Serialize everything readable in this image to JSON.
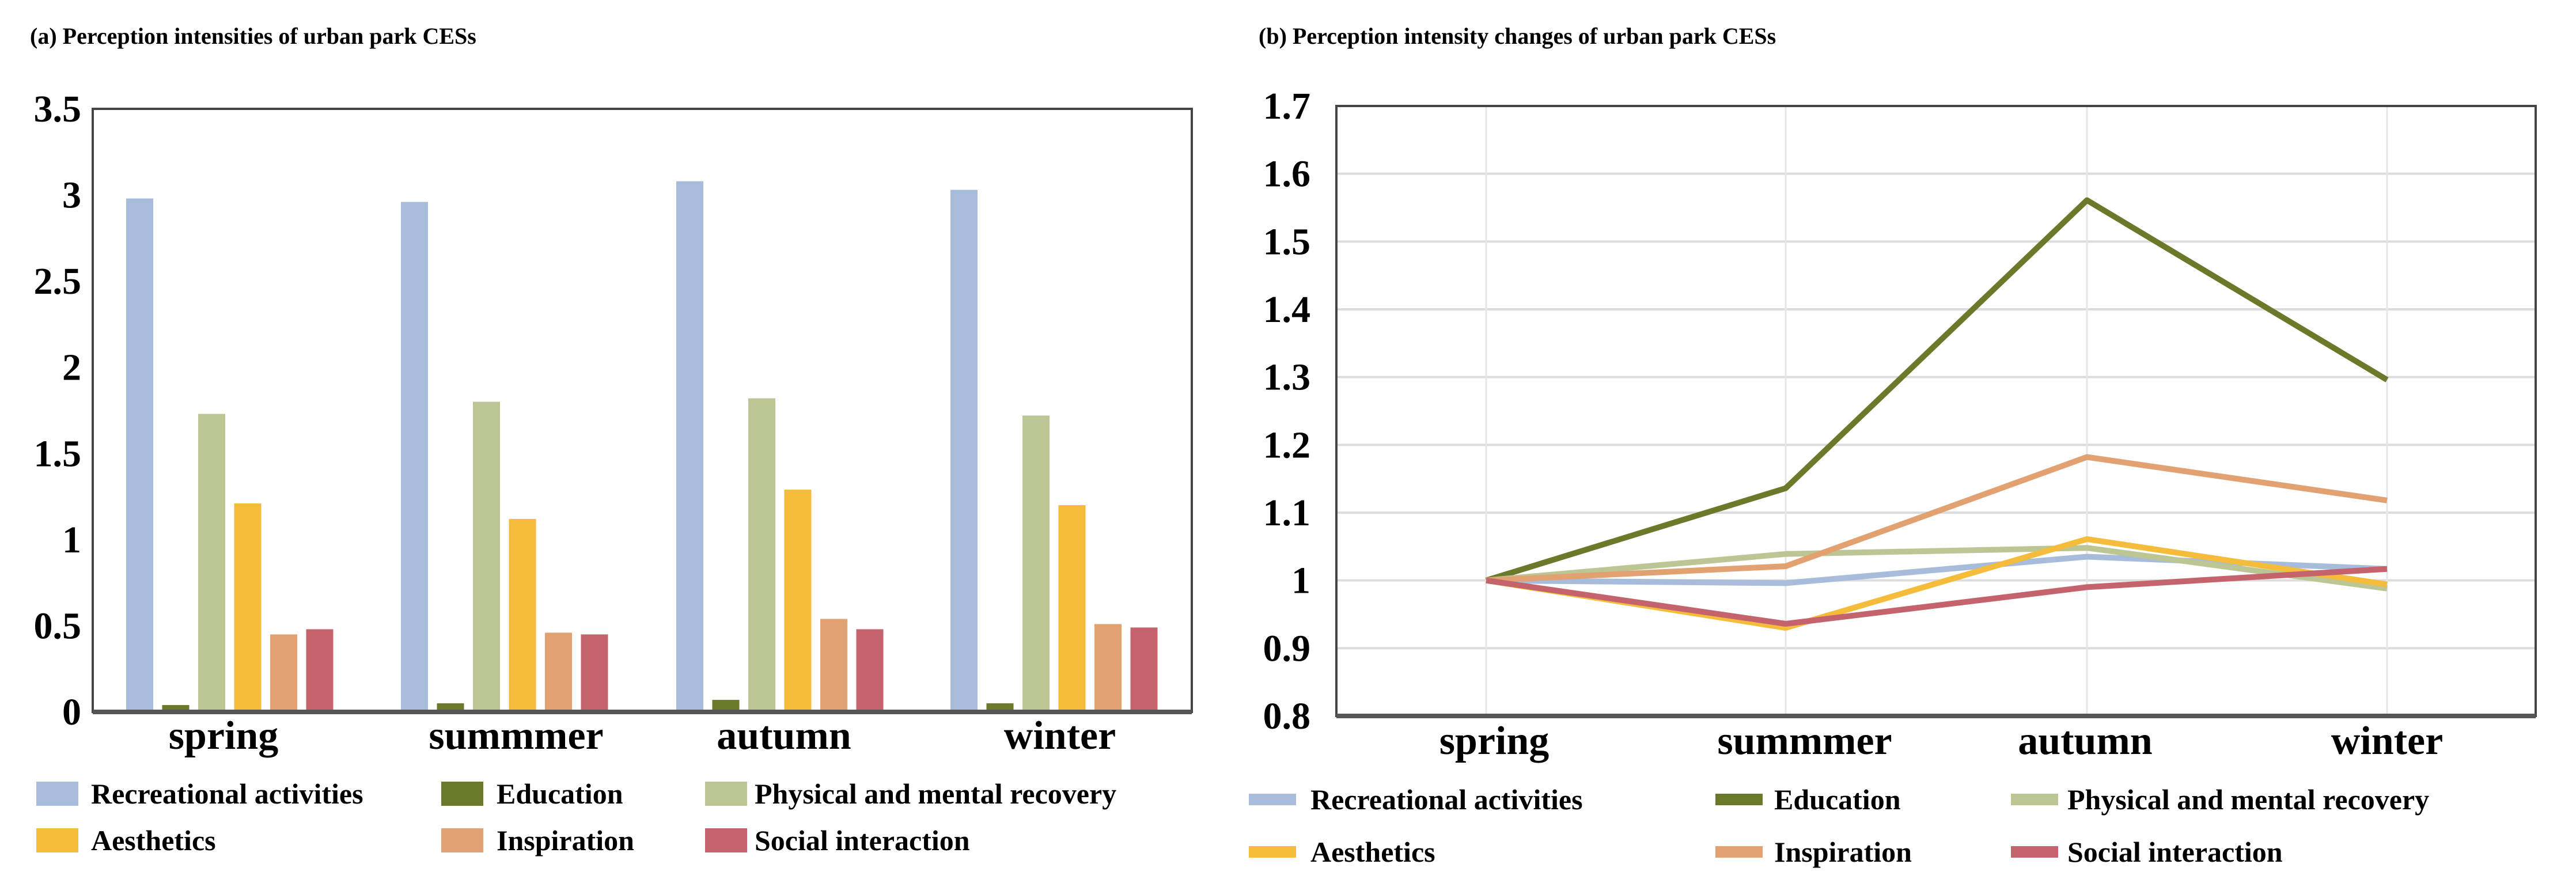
{
  "colors": {
    "Recreational activities": "#a7bbdb",
    "Education": "#6b7a2a",
    "Physical and mental recovery": "#bcc694",
    "Aesthetics": "#f5bb3b",
    "Inspiration": "#e2a171",
    "Social interaction": "#c4636b"
  },
  "chart_data": [
    {
      "type": "bar",
      "title": "(a)  Perception intensities of urban park CESs",
      "categories": [
        "spring",
        "summmer",
        "autumn",
        "winter"
      ],
      "ylim": [
        0,
        3.5
      ],
      "yticks": [
        "0",
        "0.5",
        "1",
        "1.5",
        "2",
        "2.5",
        "3",
        "3.5"
      ],
      "grid": false,
      "legend_position": "bottom",
      "series": [
        {
          "name": "Recreational activities",
          "values": [
            2.98,
            2.96,
            3.08,
            3.03
          ]
        },
        {
          "name": "Education",
          "values": [
            0.04,
            0.05,
            0.07,
            0.05
          ]
        },
        {
          "name": "Physical and mental recovery",
          "values": [
            1.73,
            1.8,
            1.82,
            1.72
          ]
        },
        {
          "name": "Aesthetics",
          "values": [
            1.21,
            1.12,
            1.29,
            1.2
          ]
        },
        {
          "name": "Inspiration",
          "values": [
            0.45,
            0.46,
            0.54,
            0.51
          ]
        },
        {
          "name": "Social interaction",
          "values": [
            0.48,
            0.45,
            0.48,
            0.49
          ]
        }
      ]
    },
    {
      "type": "line",
      "title": "(b)  Perception intensity changes of urban park CESs",
      "categories": [
        "spring",
        "summmer",
        "autumn",
        "winter"
      ],
      "ylim": [
        0.8,
        1.7
      ],
      "yticks": [
        "0.8",
        "0.9",
        "1",
        "1.1",
        "1.2",
        "1.3",
        "1.4",
        "1.5",
        "1.6",
        "1.7"
      ],
      "grid": true,
      "legend_position": "bottom",
      "series": [
        {
          "name": "Recreational activities",
          "values": [
            1.0,
            0.996,
            1.035,
            1.017
          ]
        },
        {
          "name": "Education",
          "values": [
            1.0,
            1.136,
            1.561,
            1.296
          ]
        },
        {
          "name": "Physical and mental recovery",
          "values": [
            1.0,
            1.039,
            1.048,
            0.988
          ]
        },
        {
          "name": "Aesthetics",
          "values": [
            1.0,
            0.93,
            1.061,
            0.994
          ]
        },
        {
          "name": "Inspiration",
          "values": [
            1.0,
            1.021,
            1.182,
            1.118
          ]
        },
        {
          "name": "Social interaction",
          "values": [
            1.0,
            0.936,
            0.99,
            1.017
          ]
        }
      ]
    }
  ]
}
